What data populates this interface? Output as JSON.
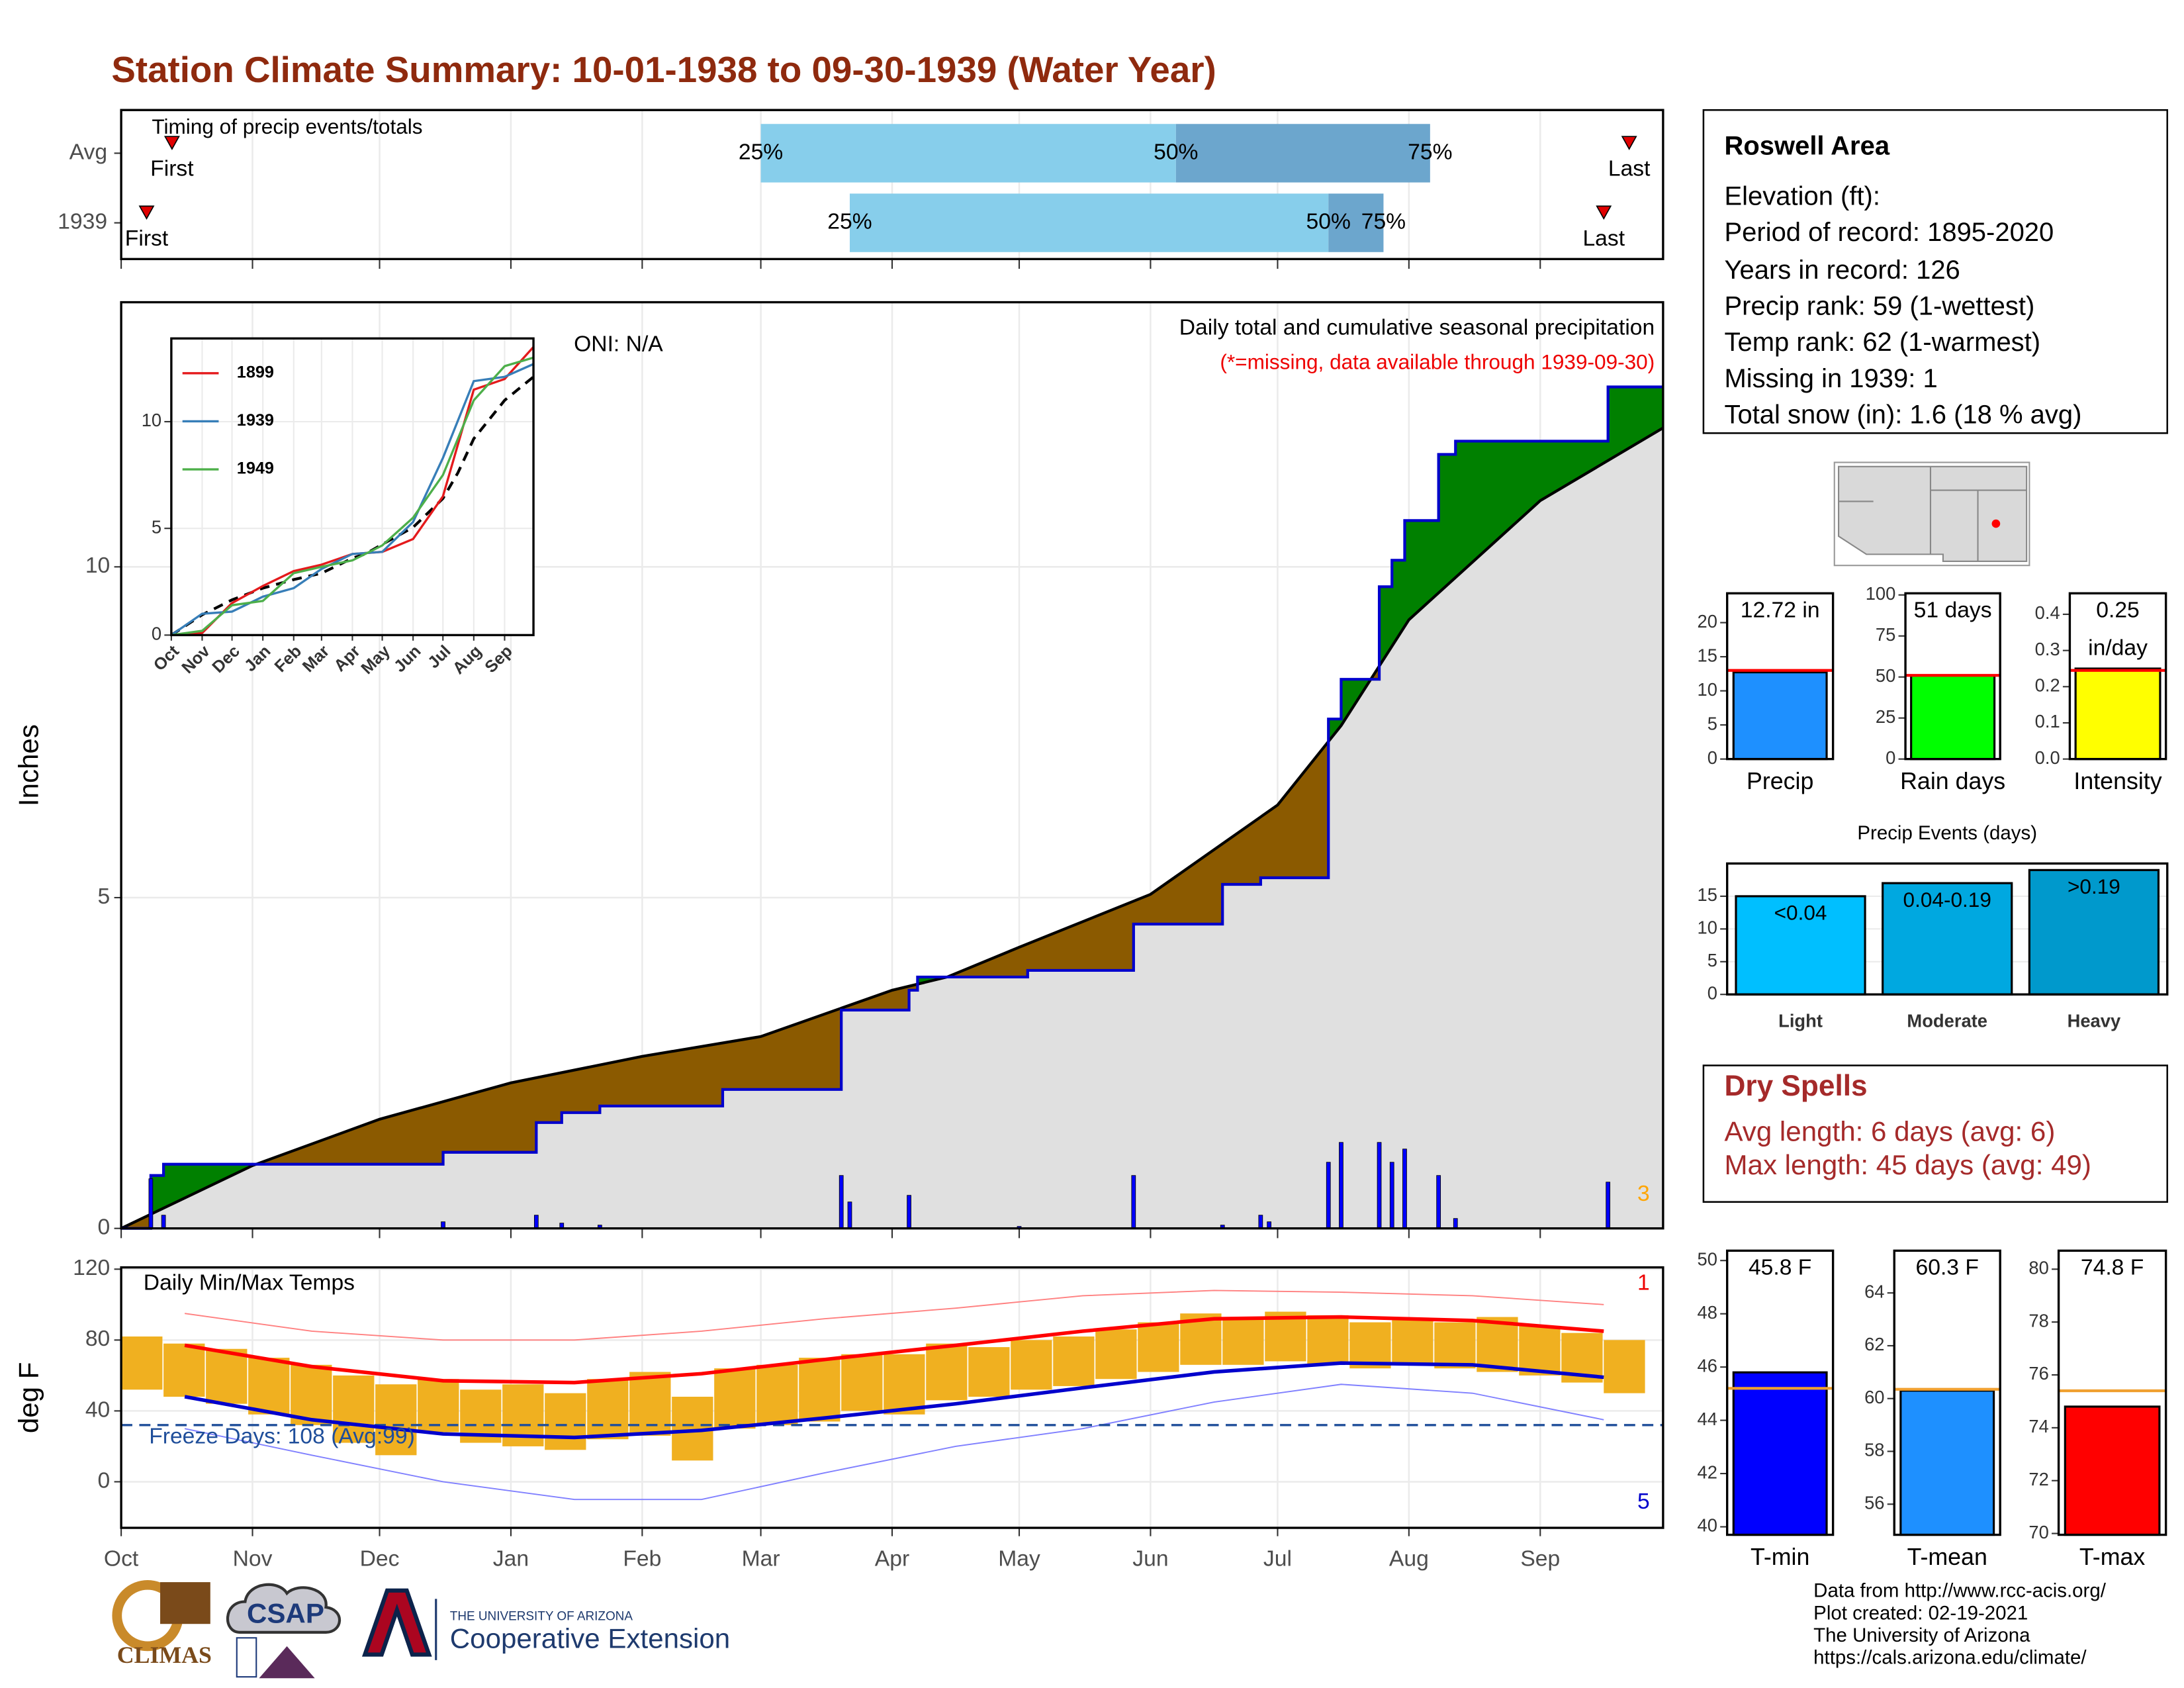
{
  "title": "Station Climate Summary: 10-01-1938 to 09-30-1939 (Water Year)",
  "chart_data": [
    {
      "type": "timing",
      "title": "Timing of precip events/totals",
      "xlim": [
        0,
        364
      ],
      "xticks": [
        0,
        31,
        61,
        92,
        123,
        151,
        182,
        212,
        243,
        273,
        304,
        335
      ],
      "rows": [
        "Avg",
        "1939"
      ],
      "first": [
        12,
        6
      ],
      "q25": [
        151,
        172
      ],
      "q50": [
        249,
        285
      ],
      "q75": [
        309,
        298
      ],
      "last": [
        356,
        350
      ],
      "first_label": "First",
      "last_label": "Last",
      "q_labels": [
        "25%",
        "50%",
        "75%"
      ],
      "colors": [
        "#87ceeb",
        "#6ca6cd"
      ],
      "marker_color": "#e00000"
    },
    {
      "type": "cumulative",
      "ylabel": "Inches",
      "ylim": [
        0,
        14
      ],
      "yticks": [
        0,
        5,
        10
      ],
      "xlim": [
        0,
        364
      ],
      "xticks": [
        0,
        31,
        61,
        92,
        123,
        151,
        182,
        212,
        243,
        273,
        304,
        335
      ],
      "grid": true,
      "annotations": [
        "ONI: N/A",
        "Daily total and cumulative seasonal precipitation",
        "(*=missing, data available through 1939-09-30)",
        "3"
      ],
      "observed": {
        "color": "#0000cc",
        "x": [
          0,
          7,
          7,
          10,
          10,
          76,
          76,
          98,
          98,
          104,
          104,
          113,
          113,
          142,
          142,
          170,
          170,
          186,
          186,
          188,
          188,
          214,
          214,
          239,
          239,
          260,
          260,
          269,
          269,
          285,
          285,
          288,
          288,
          297,
          297,
          300,
          300,
          303,
          303,
          311,
          311,
          315,
          315,
          351,
          351,
          364
        ],
        "values": [
          0,
          0,
          0.8,
          0.8,
          0.97,
          0.97,
          1.15,
          1.15,
          1.6,
          1.6,
          1.75,
          1.75,
          1.85,
          1.85,
          2.1,
          2.1,
          3.3,
          3.3,
          3.6,
          3.6,
          3.8,
          3.8,
          3.9,
          3.9,
          4.6,
          4.6,
          5.2,
          5.2,
          5.3,
          5.3,
          7.7,
          7.7,
          8.3,
          8.3,
          9.7,
          9.7,
          10.1,
          10.1,
          10.7,
          10.7,
          11.7,
          11.7,
          11.9,
          11.9,
          12.72,
          12.72
        ]
      },
      "average": {
        "color": "#000000",
        "x": [
          0,
          31,
          61,
          92,
          123,
          151,
          182,
          195,
          212,
          243,
          273,
          288,
          304,
          335,
          364
        ],
        "values": [
          0,
          0.95,
          1.65,
          2.2,
          2.6,
          2.9,
          3.6,
          3.8,
          4.25,
          5.05,
          6.4,
          7.6,
          9.2,
          11.0,
          12.1
        ]
      },
      "above_color": "#008000",
      "below_color": "#8b5a00",
      "base_color": "#e0e0e0",
      "daily": {
        "color": "#0000ff",
        "x": [
          7,
          10,
          76,
          98,
          104,
          113,
          170,
          172,
          186,
          212,
          239,
          260,
          269,
          271,
          285,
          288,
          297,
          300,
          303,
          311,
          315,
          351
        ],
        "values": [
          0.75,
          0.2,
          0.1,
          0.2,
          0.08,
          0.05,
          0.8,
          0.4,
          0.5,
          0.03,
          0.8,
          0.05,
          0.2,
          0.1,
          1.0,
          1.3,
          1.3,
          1.0,
          1.2,
          0.8,
          0.15,
          0.7
        ]
      }
    },
    {
      "type": "line",
      "xlim": [
        0,
        364
      ],
      "ylim": [
        0,
        13.9
      ],
      "yticks": [
        0,
        5,
        10
      ],
      "xticks": [
        {
          "value": 0,
          "label": "Oct"
        },
        {
          "value": 31,
          "label": "Nov"
        },
        {
          "value": 61,
          "label": "Dec"
        },
        {
          "value": 92,
          "label": "Jan"
        },
        {
          "value": 123,
          "label": "Feb"
        },
        {
          "value": 151,
          "label": "Mar"
        },
        {
          "value": 182,
          "label": "Apr"
        },
        {
          "value": 212,
          "label": "May"
        },
        {
          "value": 243,
          "label": "Jun"
        },
        {
          "value": 273,
          "label": "Jul"
        },
        {
          "value": 304,
          "label": "Aug"
        },
        {
          "value": 335,
          "label": "Sep"
        }
      ],
      "x": [
        0,
        31,
        61,
        92,
        123,
        151,
        182,
        212,
        243,
        273,
        304,
        335,
        364
      ],
      "series": [
        {
          "name": "1899",
          "color": "#e41a1c",
          "values": [
            0,
            0.1,
            1.5,
            2.3,
            3.0,
            3.3,
            3.8,
            3.9,
            4.5,
            6.5,
            11.5,
            12.0,
            13.5
          ]
        },
        {
          "name": "1939",
          "color": "#377eb8",
          "values": [
            0,
            1.0,
            1.1,
            1.8,
            2.2,
            3.1,
            3.8,
            3.9,
            5.3,
            8.3,
            11.9,
            12.1,
            12.7
          ]
        },
        {
          "name": "1949",
          "color": "#4daf4a",
          "values": [
            0,
            0.2,
            1.4,
            1.6,
            2.9,
            3.2,
            3.5,
            4.2,
            5.5,
            7.5,
            11.0,
            12.6,
            13.0
          ]
        }
      ]
    },
    {
      "type": "temperature",
      "title": "Daily Min/Max Temps",
      "ylabel": "deg F",
      "ylim": [
        -26,
        121
      ],
      "yticks": [
        0,
        40,
        80,
        120
      ],
      "xlim": [
        0,
        364
      ],
      "grid": true,
      "xticks": [
        {
          "value": 0,
          "label": "Oct"
        },
        {
          "value": 31,
          "label": "Nov"
        },
        {
          "value": 61,
          "label": "Dec"
        },
        {
          "value": 92,
          "label": "Jan"
        },
        {
          "value": 123,
          "label": "Feb"
        },
        {
          "value": 151,
          "label": "Mar"
        },
        {
          "value": 182,
          "label": "Apr"
        },
        {
          "value": 212,
          "label": "May"
        },
        {
          "value": 243,
          "label": "Jun"
        },
        {
          "value": 273,
          "label": "Jul"
        },
        {
          "value": 304,
          "label": "Aug"
        },
        {
          "value": 335,
          "label": "Sep"
        }
      ],
      "days": [
        0,
        10,
        20,
        30,
        40,
        50,
        60,
        70,
        80,
        90,
        100,
        110,
        120,
        130,
        140,
        150,
        160,
        170,
        180,
        190,
        200,
        210,
        220,
        230,
        240,
        250,
        260,
        270,
        280,
        290,
        300,
        310,
        320,
        330,
        340,
        350
      ],
      "max": [
        82,
        78,
        75,
        70,
        66,
        60,
        55,
        58,
        52,
        55,
        50,
        58,
        62,
        48,
        64,
        66,
        70,
        72,
        72,
        78,
        76,
        80,
        82,
        86,
        90,
        95,
        93,
        96,
        94,
        90,
        92,
        90,
        93,
        88,
        84,
        80
      ],
      "min": [
        52,
        48,
        44,
        38,
        32,
        22,
        15,
        28,
        22,
        20,
        18,
        24,
        26,
        12,
        30,
        32,
        34,
        40,
        38,
        46,
        48,
        52,
        54,
        58,
        62,
        66,
        66,
        68,
        66,
        64,
        66,
        64,
        62,
        60,
        56,
        50
      ],
      "bar_color": "#f0b020",
      "normal": {
        "x": [
          15,
          45,
          76,
          107,
          137,
          166,
          197,
          227,
          258,
          288,
          319,
          350
        ],
        "max": [
          77,
          65,
          57,
          56,
          61,
          69,
          77,
          85,
          92,
          93,
          91,
          85
        ],
        "min": [
          48,
          35,
          27,
          25,
          29,
          36,
          44,
          53,
          62,
          67,
          66,
          59
        ],
        "max_color": "#ff0000",
        "min_color": "#0000cc"
      },
      "record": {
        "x": [
          15,
          45,
          76,
          107,
          137,
          166,
          197,
          227,
          258,
          288,
          319,
          350
        ],
        "max": [
          95,
          85,
          80,
          80,
          85,
          92,
          98,
          105,
          108,
          107,
          105,
          100
        ],
        "min": [
          30,
          15,
          0,
          -10,
          -10,
          5,
          20,
          30,
          45,
          55,
          50,
          35
        ],
        "max_color": "#ff8080",
        "min_color": "#8080ff"
      },
      "freeze": 32,
      "freeze_label": "Freeze Days: 108 (Avg:99)",
      "annotations": [
        "1",
        "5"
      ]
    },
    {
      "type": "bar",
      "categories": [
        "Precip"
      ],
      "values": [
        12.72
      ],
      "value_labels": [
        "12.72 in"
      ],
      "average": 13.0,
      "ylim": [
        0,
        24.3
      ],
      "yticks": [
        0,
        5,
        10,
        15,
        20
      ],
      "color": "#1e90ff",
      "average_color": "#ff0000"
    },
    {
      "type": "bar",
      "categories": [
        "Rain days"
      ],
      "values": [
        51
      ],
      "value_labels": [
        "51 days"
      ],
      "average": 51,
      "ylim": [
        0,
        101
      ],
      "yticks": [
        0,
        25,
        50,
        75,
        100
      ],
      "color": "#00ff00",
      "average_color": "#ff0000"
    },
    {
      "type": "bar",
      "categories": [
        "Intensity"
      ],
      "values": [
        0.25
      ],
      "value_labels": [
        "0.25"
      ],
      "unit": "in/day",
      "average": 0.245,
      "ylim": [
        0,
        0.458
      ],
      "yticks": [
        {
          "value": 0,
          "label": "0.0"
        },
        {
          "value": 0.1,
          "label": "0.1"
        },
        {
          "value": 0.2,
          "label": "0.2"
        },
        {
          "value": 0.3,
          "label": "0.3"
        },
        {
          "value": 0.4,
          "label": "0.4"
        }
      ],
      "color": "#ffff00",
      "average_color": "#ff0000"
    },
    {
      "type": "bar",
      "title": "Precip Events (days)",
      "categories": [
        "Light",
        "Moderate",
        "Heavy"
      ],
      "values": [
        15,
        17,
        19
      ],
      "bar_labels": [
        "<0.04",
        "0.04-0.19",
        ">0.19"
      ],
      "ylim": [
        0,
        20
      ],
      "yticks": [
        0,
        5,
        10,
        15
      ],
      "colors": [
        "#00bfff",
        "#00a8e0",
        "#0099cc"
      ]
    },
    {
      "type": "bar",
      "categories": [
        "T-min"
      ],
      "values": [
        45.8
      ],
      "value_labels": [
        "45.8 F"
      ],
      "average": 45.2,
      "ylim": [
        39.7,
        50.37
      ],
      "yticks": [
        40,
        42,
        44,
        46,
        48,
        50
      ],
      "color": "#0000ff",
      "average_color": "#f0a030"
    },
    {
      "type": "bar",
      "categories": [
        "T-mean"
      ],
      "values": [
        60.3
      ],
      "value_labels": [
        "60.3 F"
      ],
      "average": 60.35,
      "ylim": [
        54.84,
        65.6
      ],
      "yticks": [
        56,
        58,
        60,
        62,
        64
      ],
      "color": "#1e90ff",
      "average_color": "#f0a030"
    },
    {
      "type": "bar",
      "categories": [
        "T-max"
      ],
      "values": [
        74.8
      ],
      "value_labels": [
        "74.8 F"
      ],
      "average": 75.4,
      "ylim": [
        69.95,
        80.7
      ],
      "yticks": [
        70,
        72,
        74,
        76,
        78,
        80
      ],
      "color": "#ff0000",
      "average_color": "#f0a030"
    }
  ],
  "info": {
    "title": "Roswell Area",
    "lines": [
      "Elevation (ft):",
      "Period of record: 1895-2020",
      "Years in record: 126",
      "Precip rank: 59 (1-wettest)",
      "Temp rank: 62 (1-warmest)",
      "Missing in 1939: 1",
      "Total snow (in): 1.6 (18 % avg)"
    ]
  },
  "dry_spells": {
    "title": "Dry Spells",
    "lines": [
      "Avg length: 6 days (avg: 6)",
      "Max length: 45 days (avg: 49)"
    ]
  },
  "footer": {
    "logos": [
      "CLIMAS",
      "CSAP",
      "THE UNIVERSITY OF ARIZONA",
      "Cooperative Extension"
    ],
    "credits": [
      "Data from http://www.rcc-acis.org/",
      "Plot created: 02-19-2021",
      "The University of Arizona",
      "https://cals.arizona.edu/climate/"
    ]
  }
}
